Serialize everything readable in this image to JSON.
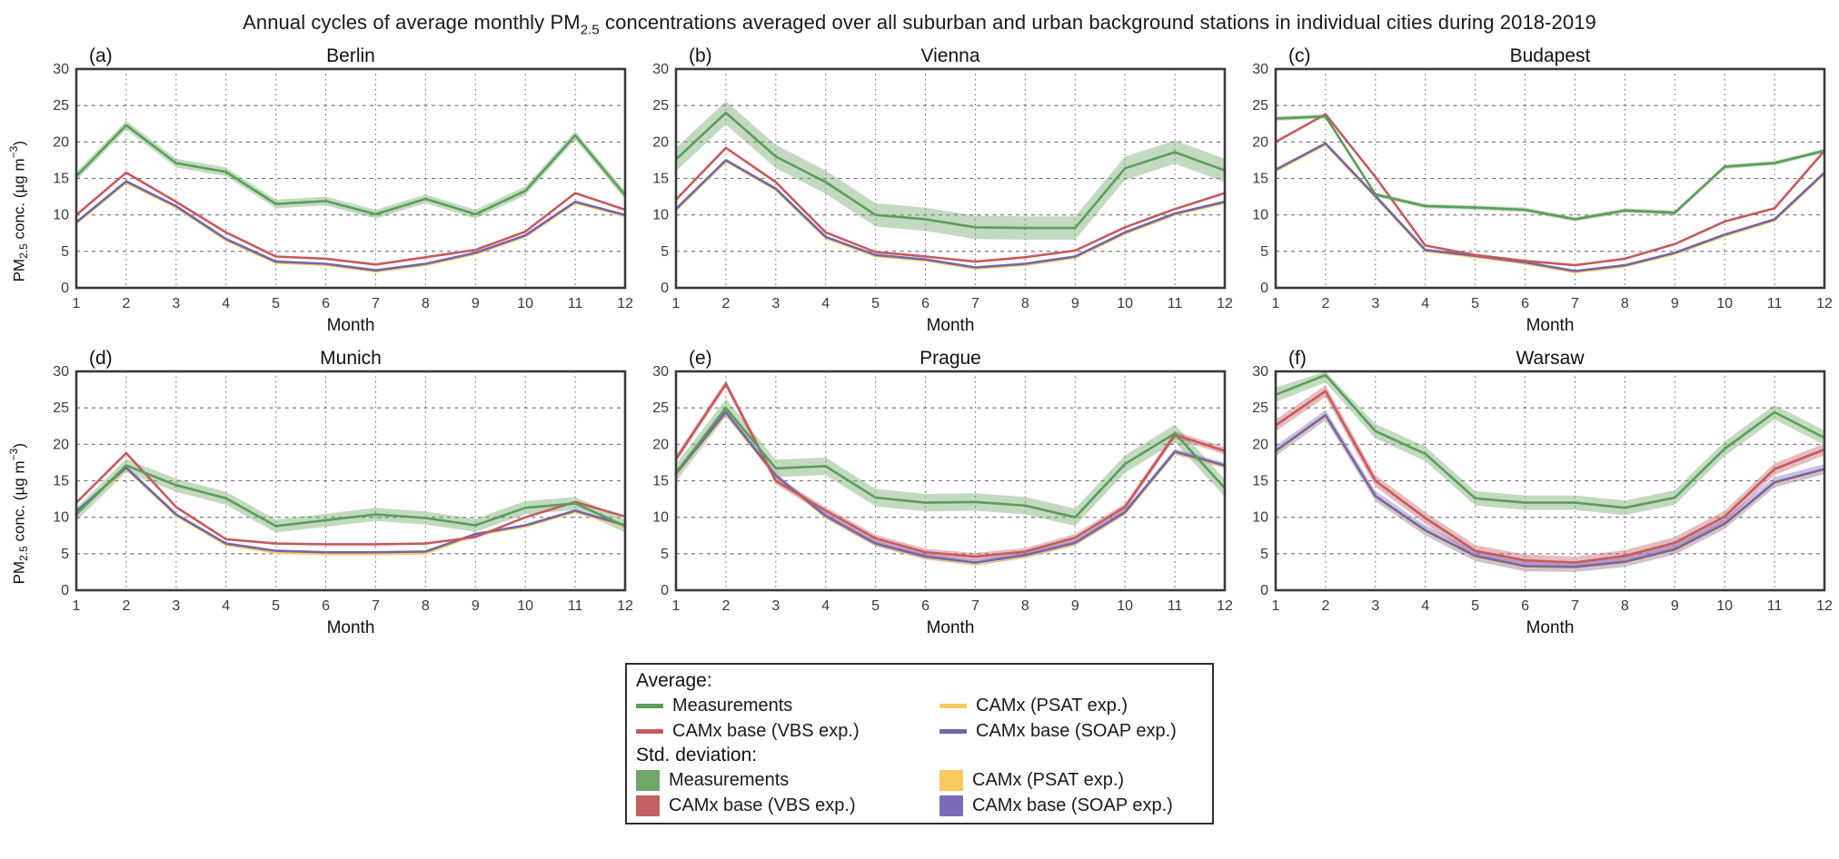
{
  "title": {
    "prefix": "Annual cycles of average monthly PM",
    "sub": "2.5",
    "suffix": " concentrations averaged over all suburban and urban background stations in individual cities during 2018-2019"
  },
  "axes": {
    "ylabel": {
      "p1": "PM",
      "sub": "2.5",
      "p2": " conc. (µg m",
      "sup": "−3",
      "p3": ")"
    },
    "xlabel": "Month",
    "yticks": [
      0,
      5,
      10,
      15,
      20,
      25,
      30
    ],
    "xticks": [
      1,
      2,
      3,
      4,
      5,
      6,
      7,
      8,
      9,
      10,
      11,
      12
    ],
    "ylim": [
      0,
      30
    ]
  },
  "series_defs": [
    {
      "key": "measurements",
      "label": "Measurements",
      "color": "#5A9E5A",
      "band": "#6FA76B"
    },
    {
      "key": "vbs",
      "label": "CAMx base (VBS exp.)",
      "color": "#C65A5D",
      "band": "#C26065"
    },
    {
      "key": "psat",
      "label": "CAMx (PSAT exp.)",
      "color": "#F7CB5E",
      "band": "#F7CB5E"
    },
    {
      "key": "soap",
      "label": "CAMx base (SOAP exp.)",
      "color": "#7664AC",
      "band": "#7D6BBA"
    }
  ],
  "legend": {
    "avg_header": "Average:",
    "std_header": "Std. deviation:"
  },
  "chart_data": [
    {
      "type": "line",
      "panel": "(a)",
      "city": "Berlin",
      "x": [
        1,
        2,
        3,
        4,
        5,
        6,
        7,
        8,
        9,
        10,
        11,
        12
      ],
      "series": [
        {
          "name": "Measurements",
          "values": [
            15.3,
            22.3,
            17.1,
            15.9,
            11.5,
            11.9,
            10.1,
            12.2,
            10.1,
            13.3,
            20.9,
            12.7
          ],
          "band_halfwidth": 0.6
        },
        {
          "name": "CAMx base (VBS exp.)",
          "values": [
            10.0,
            15.8,
            11.8,
            7.6,
            4.3,
            4.0,
            3.2,
            4.2,
            5.2,
            7.7,
            13.0,
            10.7
          ],
          "band_halfwidth": 0
        },
        {
          "name": "CAMx (PSAT exp.)",
          "values": [
            9.0,
            14.6,
            11.2,
            6.7,
            3.6,
            3.3,
            2.4,
            3.3,
            4.8,
            7.2,
            11.8,
            10.0
          ],
          "band_halfwidth": 0
        },
        {
          "name": "CAMx base (SOAP exp.)",
          "values": [
            9.0,
            14.6,
            11.2,
            6.7,
            3.6,
            3.3,
            2.4,
            3.3,
            4.8,
            7.2,
            11.8,
            10.0
          ],
          "band_halfwidth": 0
        }
      ]
    },
    {
      "type": "line",
      "panel": "(b)",
      "city": "Vienna",
      "x": [
        1,
        2,
        3,
        4,
        5,
        6,
        7,
        8,
        9,
        10,
        11,
        12
      ],
      "series": [
        {
          "name": "Measurements",
          "values": [
            17.6,
            24.0,
            18.0,
            14.5,
            10.0,
            9.4,
            8.3,
            8.2,
            8.2,
            16.4,
            18.6,
            16.1
          ],
          "band_halfwidth": 1.6
        },
        {
          "name": "CAMx base (VBS exp.)",
          "values": [
            12.1,
            19.2,
            14.5,
            7.6,
            4.9,
            4.3,
            3.6,
            4.2,
            5.1,
            8.3,
            10.8,
            13.0
          ],
          "band_halfwidth": 0
        },
        {
          "name": "CAMx (PSAT exp.)",
          "values": [
            10.8,
            17.5,
            13.6,
            7.0,
            4.5,
            3.9,
            2.8,
            3.3,
            4.3,
            7.6,
            10.2,
            11.8
          ],
          "band_halfwidth": 0
        },
        {
          "name": "CAMx base (SOAP exp.)",
          "values": [
            10.8,
            17.5,
            13.6,
            7.0,
            4.5,
            3.9,
            2.8,
            3.3,
            4.3,
            7.6,
            10.2,
            11.8
          ],
          "band_halfwidth": 0
        }
      ]
    },
    {
      "type": "line",
      "panel": "(c)",
      "city": "Budapest",
      "x": [
        1,
        2,
        3,
        4,
        5,
        6,
        7,
        8,
        9,
        10,
        11,
        12
      ],
      "series": [
        {
          "name": "Measurements",
          "values": [
            23.2,
            23.5,
            12.8,
            11.2,
            11.0,
            10.7,
            9.4,
            10.6,
            10.3,
            16.6,
            17.1,
            18.8
          ],
          "band_halfwidth": 0.3
        },
        {
          "name": "CAMx base (VBS exp.)",
          "values": [
            20.0,
            23.8,
            15.2,
            5.8,
            4.5,
            3.7,
            3.1,
            4.0,
            6.0,
            9.1,
            10.9,
            18.8
          ],
          "band_halfwidth": 0
        },
        {
          "name": "CAMx (PSAT exp.)",
          "values": [
            16.2,
            19.8,
            12.6,
            5.2,
            4.4,
            3.5,
            2.3,
            3.1,
            4.8,
            7.3,
            9.4,
            15.8
          ],
          "band_halfwidth": 0
        },
        {
          "name": "CAMx base (SOAP exp.)",
          "values": [
            16.2,
            19.8,
            12.6,
            5.2,
            4.4,
            3.5,
            2.3,
            3.1,
            4.8,
            7.3,
            9.4,
            15.8
          ],
          "band_halfwidth": 0
        }
      ]
    },
    {
      "type": "line",
      "panel": "(d)",
      "city": "Munich",
      "x": [
        1,
        2,
        3,
        4,
        5,
        6,
        7,
        8,
        9,
        10,
        11,
        12
      ],
      "series": [
        {
          "name": "Measurements",
          "values": [
            10.4,
            17.1,
            14.4,
            12.6,
            8.8,
            9.6,
            10.4,
            9.9,
            8.9,
            11.3,
            11.9,
            8.8
          ],
          "band_halfwidth": 0.9
        },
        {
          "name": "CAMx base (VBS exp.)",
          "values": [
            12.0,
            18.8,
            11.4,
            7.0,
            6.4,
            6.3,
            6.3,
            6.4,
            7.3,
            10.0,
            12.1,
            10.1
          ],
          "band_halfwidth": 0
        },
        {
          "name": "CAMx (PSAT exp.)",
          "values": [
            10.8,
            16.8,
            10.4,
            6.4,
            5.3,
            5.1,
            5.1,
            5.2,
            7.7,
            8.9,
            10.9,
            8.9
          ],
          "band_halfwidth": 0
        },
        {
          "name": "CAMx base (SOAP exp.)",
          "values": [
            10.8,
            16.8,
            10.4,
            6.4,
            5.4,
            5.2,
            5.2,
            5.3,
            7.7,
            8.9,
            10.9,
            8.9
          ],
          "band_halfwidth": 0
        }
      ]
    },
    {
      "type": "line",
      "panel": "(e)",
      "city": "Prague",
      "x": [
        1,
        2,
        3,
        4,
        5,
        6,
        7,
        8,
        9,
        10,
        11,
        12
      ],
      "series": [
        {
          "name": "Measurements",
          "values": [
            16.1,
            25.0,
            16.7,
            17.0,
            12.7,
            12.0,
            12.1,
            11.6,
            10.0,
            17.3,
            21.5,
            14.0
          ],
          "band_halfwidth": 1.2
        },
        {
          "name": "CAMx base (VBS exp.)",
          "values": [
            18.0,
            28.3,
            15.0,
            10.9,
            7.1,
            5.2,
            4.6,
            5.3,
            7.2,
            11.4,
            21.3,
            19.1
          ],
          "band_halfwidth": 0.5
        },
        {
          "name": "CAMx (PSAT exp.)",
          "values": [
            16.0,
            24.4,
            15.7,
            10.2,
            6.4,
            4.6,
            3.8,
            4.8,
            6.5,
            10.7,
            19.0,
            17.1
          ],
          "band_halfwidth": 0
        },
        {
          "name": "CAMx base (SOAP exp.)",
          "values": [
            16.0,
            24.4,
            15.7,
            10.2,
            6.4,
            4.6,
            3.8,
            4.8,
            6.5,
            10.7,
            19.0,
            17.1
          ],
          "band_halfwidth": 0.4
        }
      ]
    },
    {
      "type": "line",
      "panel": "(f)",
      "city": "Warsaw",
      "x": [
        1,
        2,
        3,
        4,
        5,
        6,
        7,
        8,
        9,
        10,
        11,
        12
      ],
      "series": [
        {
          "name": "Measurements",
          "values": [
            26.8,
            29.5,
            21.8,
            18.7,
            12.6,
            12.0,
            12.0,
            11.3,
            12.7,
            19.4,
            24.4,
            20.9
          ],
          "band_halfwidth": 1.0
        },
        {
          "name": "CAMx base (VBS exp.)",
          "values": [
            22.6,
            27.3,
            15.0,
            9.9,
            5.4,
            4.1,
            3.8,
            4.7,
            6.5,
            10.1,
            16.6,
            19.3
          ],
          "band_halfwidth": 0.8
        },
        {
          "name": "CAMx (PSAT exp.)",
          "values": [
            19.1,
            24.0,
            12.9,
            8.2,
            4.7,
            3.3,
            3.2,
            3.9,
            5.6,
            9.1,
            14.8,
            16.6
          ],
          "band_halfwidth": 0
        },
        {
          "name": "CAMx base (SOAP exp.)",
          "values": [
            19.1,
            24.0,
            12.9,
            8.2,
            4.7,
            3.3,
            3.2,
            3.9,
            5.6,
            9.1,
            14.8,
            16.6
          ],
          "band_halfwidth": 0.7
        }
      ]
    }
  ]
}
